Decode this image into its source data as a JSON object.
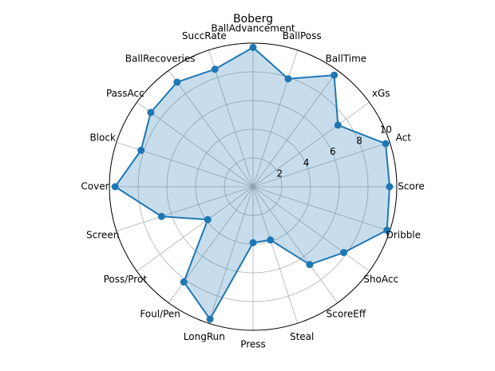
{
  "chart_data": {
    "type": "radar",
    "title": "Boberg",
    "categories": [
      "Score",
      "Act",
      "xGs",
      "BallTime",
      "BallPoss",
      "BallAdvancement",
      "SuccRate",
      "BallRecoveries",
      "PassAcc",
      "Block",
      "Cover",
      "Screen",
      "Poss/Prot",
      "Foul/Pen",
      "LongRun",
      "Press",
      "Steal",
      "ScoreEff",
      "ShoAcc",
      "Dribble"
    ],
    "values": [
      9.5,
      9.7,
      7.3,
      9.6,
      7.9,
      9.7,
      8.6,
      9.0,
      8.8,
      8.2,
      9.6,
      6.7,
      3.9,
      8.2,
      9.7,
      3.9,
      3.9,
      6.7,
      7.8,
      9.8
    ],
    "color": "#1f77b4",
    "rlim": [
      0,
      10
    ],
    "rticks": [
      2,
      4,
      6,
      8,
      10
    ],
    "grid": true
  }
}
